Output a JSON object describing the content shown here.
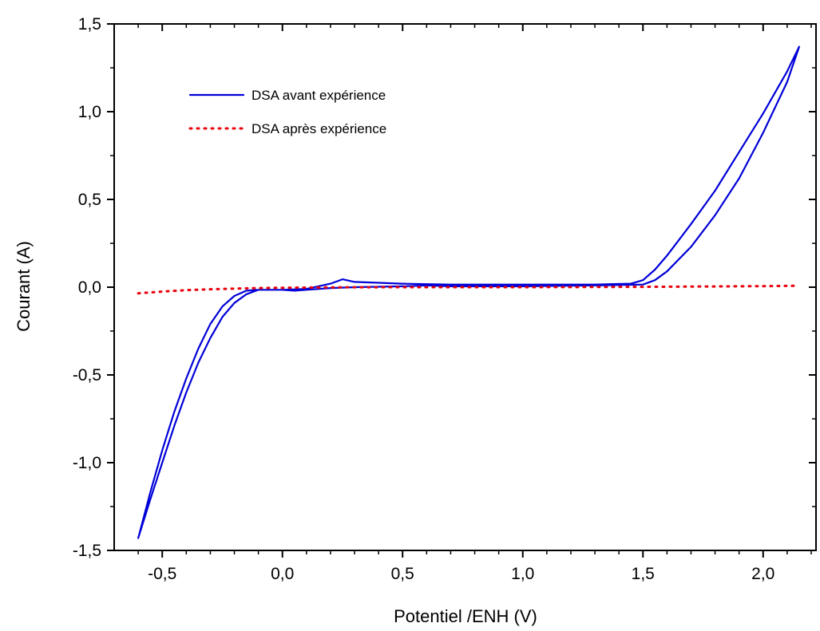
{
  "chart_data": {
    "type": "line",
    "xlabel": "Potentiel /ENH (V)",
    "ylabel": "Courant (A)",
    "xlim": [
      -0.7,
      2.22
    ],
    "ylim": [
      -1.5,
      1.5
    ],
    "x_ticks": [
      -0.5,
      0.0,
      0.5,
      1.0,
      1.5,
      2.0
    ],
    "x_tick_labels": [
      "-0,5",
      "0,0",
      "0,5",
      "1,0",
      "1,5",
      "2,0"
    ],
    "y_ticks": [
      -1.5,
      -1.0,
      -0.5,
      0.0,
      0.5,
      1.0,
      1.5
    ],
    "y_tick_labels": [
      "-1,5",
      "-1,0",
      "-0,5",
      "0,0",
      "0,5",
      "1,0",
      "1,5"
    ],
    "grid": false,
    "legend_position": "top-left",
    "series": [
      {
        "name": "DSA avant expérience",
        "color": "#0000d8",
        "style": "solid",
        "x": [
          -0.6,
          -0.55,
          -0.5,
          -0.45,
          -0.4,
          -0.35,
          -0.3,
          -0.25,
          -0.2,
          -0.15,
          -0.1,
          -0.05,
          0.0,
          0.1,
          0.2,
          0.25,
          0.3,
          0.5,
          0.7,
          1.0,
          1.3,
          1.45,
          1.5,
          1.55,
          1.6,
          1.7,
          1.8,
          1.9,
          2.0,
          2.1,
          2.15,
          2.1,
          2.0,
          1.9,
          1.8,
          1.7,
          1.6,
          1.55,
          1.5,
          1.3,
          1.0,
          0.7,
          0.6,
          0.5,
          0.3,
          0.2,
          0.1,
          0.05,
          0.0,
          -0.05,
          -0.1,
          -0.15,
          -0.2,
          -0.25,
          -0.3,
          -0.35,
          -0.4,
          -0.45,
          -0.5,
          -0.55,
          -0.6
        ],
        "y": [
          -1.43,
          -1.17,
          -0.93,
          -0.71,
          -0.52,
          -0.35,
          -0.21,
          -0.11,
          -0.05,
          -0.02,
          -0.015,
          -0.015,
          -0.015,
          -0.01,
          0.02,
          0.045,
          0.03,
          0.02,
          0.015,
          0.015,
          0.015,
          0.02,
          0.04,
          0.1,
          0.18,
          0.36,
          0.55,
          0.77,
          0.99,
          1.23,
          1.37,
          1.17,
          0.88,
          0.62,
          0.41,
          0.23,
          0.09,
          0.04,
          0.015,
          0.01,
          0.005,
          0.005,
          0.01,
          0.005,
          0.0,
          -0.005,
          -0.015,
          -0.02,
          -0.015,
          -0.015,
          -0.015,
          -0.04,
          -0.09,
          -0.17,
          -0.29,
          -0.43,
          -0.6,
          -0.79,
          -1.0,
          -1.21,
          -1.43
        ]
      },
      {
        "name": "DSA après expérience",
        "color": "#e8000b",
        "style": "dotted",
        "x": [
          -0.6,
          -0.5,
          -0.4,
          -0.3,
          -0.2,
          -0.1,
          0.0,
          0.2,
          0.5,
          1.0,
          1.5,
          2.0,
          2.15
        ],
        "y": [
          -0.035,
          -0.025,
          -0.017,
          -0.012,
          -0.008,
          -0.005,
          -0.003,
          -0.001,
          0.0,
          0.0,
          0.002,
          0.006,
          0.008
        ]
      }
    ]
  }
}
